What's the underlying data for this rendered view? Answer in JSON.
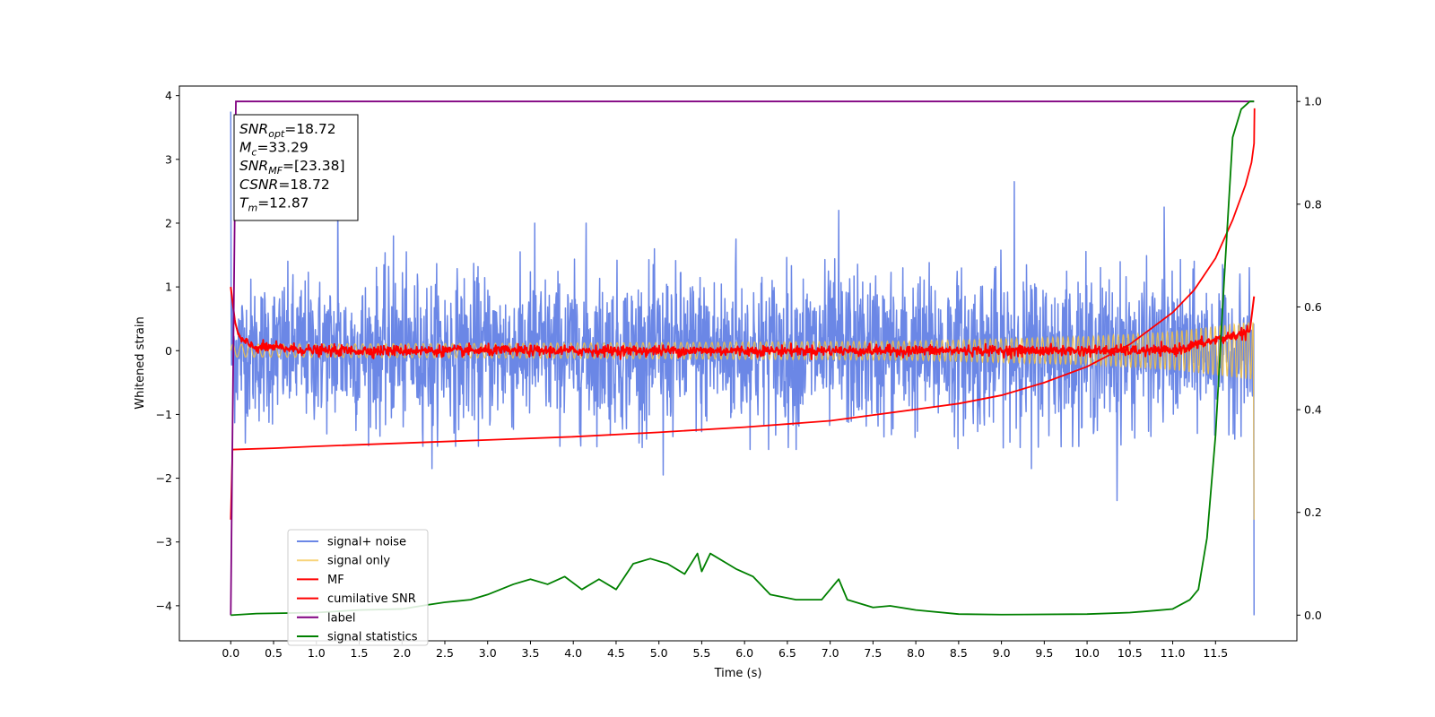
{
  "chart_data": {
    "type": "line",
    "title": "",
    "xlabel": "Time (s)",
    "ylabel": "Whitened strain",
    "xlim": [
      -0.6,
      12.45
    ],
    "ylim": [
      -4.55,
      4.15
    ],
    "y2lim": [
      -0.05,
      1.03
    ],
    "x_ticks": [
      0.0,
      0.5,
      1.0,
      1.5,
      2.0,
      2.5,
      3.0,
      3.5,
      4.0,
      4.5,
      5.0,
      5.5,
      6.0,
      6.5,
      7.0,
      7.5,
      8.0,
      8.5,
      9.0,
      9.5,
      10.0,
      10.5,
      11.0,
      11.5
    ],
    "x_tick_labels": [
      "0.0",
      "0.5",
      "1.0",
      "1.5",
      "2.0",
      "2.5",
      "3.0",
      "3.5",
      "4.0",
      "4.5",
      "5.0",
      "5.5",
      "6.0",
      "6.5",
      "7.0",
      "7.5",
      "8.0",
      "8.5",
      "9.0",
      "9.5",
      "10.0",
      "10.5",
      "11.0",
      "11.5"
    ],
    "y_ticks": [
      4,
      3,
      2,
      1,
      0,
      -1,
      -2,
      -3,
      -4
    ],
    "y_tick_labels": [
      "4",
      "3",
      "2",
      "1",
      "0",
      "−1",
      "−2",
      "−3",
      "−4"
    ],
    "y2_ticks": [
      1.0,
      0.8,
      0.6,
      0.4,
      0.2,
      0.0
    ],
    "y2_tick_labels": [
      "1.0",
      "0.8",
      "0.6",
      "0.4",
      "0.2",
      "0.0"
    ],
    "grid": false,
    "legend_position": "lower-left",
    "duration": 11.95,
    "series": [
      {
        "name": "signal+ noise",
        "axis": "left",
        "color": "#6b87e6",
        "envelope_values": {
          "x": [
            0,
            2,
            4,
            6,
            8,
            10,
            11.9
          ],
          "max": [
            1.4,
            1.55,
            1.55,
            1.65,
            1.6,
            1.6,
            1.3
          ],
          "min": [
            -1.45,
            -1.5,
            -1.5,
            -1.55,
            -1.55,
            -1.5,
            -1.4
          ]
        },
        "peaks": [
          {
            "x": 0.0,
            "y": 3.75
          },
          {
            "x": 1.25,
            "y": 2.45
          },
          {
            "x": 1.9,
            "y": 1.8
          },
          {
            "x": 3.55,
            "y": 2.0
          },
          {
            "x": 4.15,
            "y": 2.0
          },
          {
            "x": 5.9,
            "y": 1.75
          },
          {
            "x": 7.1,
            "y": 2.2
          },
          {
            "x": 9.15,
            "y": 2.65
          },
          {
            "x": 10.9,
            "y": 2.25
          },
          {
            "x": 2.35,
            "y": -1.85
          },
          {
            "x": 5.05,
            "y": -1.95
          },
          {
            "x": 9.35,
            "y": -1.85
          },
          {
            "x": 10.35,
            "y": -2.35
          },
          {
            "x": 11.95,
            "y": -4.15
          }
        ]
      },
      {
        "name": "signal only",
        "axis": "left",
        "color": "#f5c242",
        "amplitude_values": {
          "x": [
            0,
            4,
            8,
            10,
            11,
            11.9
          ],
          "amp": [
            0.1,
            0.12,
            0.15,
            0.22,
            0.3,
            0.45
          ]
        },
        "end_values": {
          "x": [
            11.95
          ],
          "y": [
            -2.65
          ]
        }
      },
      {
        "name": "MF",
        "axis": "left",
        "color": "#ff0000",
        "x": [
          0.0,
          0.05,
          0.1,
          0.2,
          0.3,
          0.5,
          1.0,
          6.0,
          11.0,
          11.9,
          11.95
        ],
        "y": [
          1.0,
          0.45,
          0.2,
          0.1,
          0.05,
          0.05,
          0.0,
          0.0,
          0.0,
          0.3,
          0.85
        ],
        "noise_amplitude": 0.04
      },
      {
        "name": "cumilative SNR",
        "axis": "left",
        "color": "#ff0000",
        "x": [
          0.0,
          0.02,
          0.03,
          0.5,
          1.0,
          2.0,
          3.0,
          4.0,
          5.0,
          6.0,
          7.0,
          8.0,
          8.5,
          9.0,
          9.5,
          10.0,
          10.5,
          11.0,
          11.25,
          11.5,
          11.7,
          11.85,
          11.92,
          11.95,
          11.955
        ],
        "y": [
          -2.65,
          -1.55,
          -1.55,
          -1.53,
          -1.5,
          -1.45,
          -1.4,
          -1.35,
          -1.28,
          -1.2,
          -1.1,
          -0.92,
          -0.83,
          -0.7,
          -0.5,
          -0.25,
          0.1,
          0.6,
          0.95,
          1.45,
          2.05,
          2.6,
          2.95,
          3.25,
          3.8
        ]
      },
      {
        "name": "label",
        "axis": "right",
        "color": "#800080",
        "x": [
          0.0,
          0.02,
          0.06,
          11.95
        ],
        "y": [
          0.0,
          0.35,
          1.0,
          1.0
        ]
      },
      {
        "name": "signal statistics",
        "axis": "right",
        "color": "#008000",
        "x": [
          0.0,
          0.3,
          1.0,
          1.5,
          2.0,
          2.3,
          2.5,
          2.8,
          3.0,
          3.3,
          3.5,
          3.7,
          3.9,
          4.1,
          4.3,
          4.5,
          4.7,
          4.9,
          5.1,
          5.3,
          5.45,
          5.5,
          5.6,
          5.8,
          5.9,
          6.1,
          6.3,
          6.6,
          6.9,
          7.0,
          7.1,
          7.2,
          7.5,
          7.7,
          8.0,
          8.5,
          9.0,
          10.0,
          10.5,
          10.8,
          11.0,
          11.2,
          11.3,
          11.4,
          11.5,
          11.6,
          11.7,
          11.8,
          11.9,
          11.95
        ],
        "y": [
          0.0,
          0.003,
          0.005,
          0.01,
          0.012,
          0.02,
          0.025,
          0.03,
          0.04,
          0.06,
          0.07,
          0.06,
          0.075,
          0.05,
          0.07,
          0.05,
          0.1,
          0.11,
          0.1,
          0.08,
          0.12,
          0.085,
          0.12,
          0.1,
          0.09,
          0.075,
          0.04,
          0.03,
          0.03,
          0.05,
          0.07,
          0.03,
          0.015,
          0.018,
          0.01,
          0.002,
          0.001,
          0.002,
          0.005,
          0.009,
          0.012,
          0.03,
          0.05,
          0.15,
          0.35,
          0.65,
          0.93,
          0.985,
          1.0,
          1.0
        ]
      }
    ],
    "annotation": {
      "lines": [
        {
          "sym": "SNR",
          "sub": "opt",
          "value": "=18.72"
        },
        {
          "sym": "M",
          "sub": "c",
          "value": "=33.29"
        },
        {
          "sym": "SNR",
          "sub": "MF",
          "value": "=[23.38]"
        },
        {
          "sym": "CSNR",
          "sub": "",
          "value": "=18.72"
        },
        {
          "sym": "T",
          "sub": "m",
          "value": "=12.87"
        }
      ]
    }
  }
}
